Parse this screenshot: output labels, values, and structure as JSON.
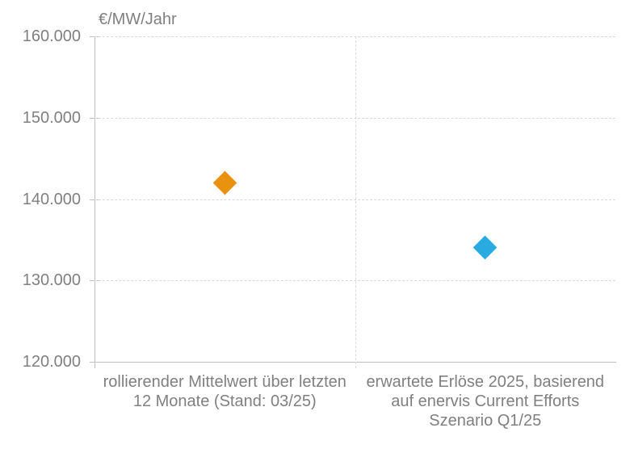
{
  "chart_data": {
    "type": "scatter",
    "title": "€/MW/Jahr",
    "y_axis": {
      "min": 120000,
      "max": 160000,
      "tick_step": 10000,
      "grid": "dashed",
      "ticks": [
        {
          "value": 160000,
          "label": "160.000"
        },
        {
          "value": 150000,
          "label": "150.000"
        },
        {
          "value": 140000,
          "label": "140.000"
        },
        {
          "value": 130000,
          "label": "130.000"
        },
        {
          "value": 120000,
          "label": "120.000"
        }
      ]
    },
    "categories": [
      {
        "full": "rollierender Mittelwert über letzten 12 Monate (Stand: 03/25)",
        "lines": [
          "rollierender Mittelwert über letzten",
          "12 Monate (Stand: 03/25)"
        ]
      },
      {
        "full": "erwartete Erlöse 2025, basierend auf enervis Current Efforts Szenario Q1/25",
        "lines": [
          "erwartete Erlöse 2025, basierend",
          "auf enervis Current Efforts",
          "Szenario Q1/25"
        ]
      }
    ],
    "points": [
      {
        "id": "rolling-average",
        "category_index": 0,
        "value": 142000,
        "marker": "diamond",
        "color": "#E8920D"
      },
      {
        "id": "expected-revenue-2025",
        "category_index": 1,
        "value": 134000,
        "marker": "diamond",
        "color": "#29ABE2"
      }
    ],
    "colors": {
      "text": "#808080",
      "axis": "#C0C0C0",
      "gridline": "#D9D9D9",
      "background": "#FFFFFF"
    },
    "legend": "none"
  }
}
